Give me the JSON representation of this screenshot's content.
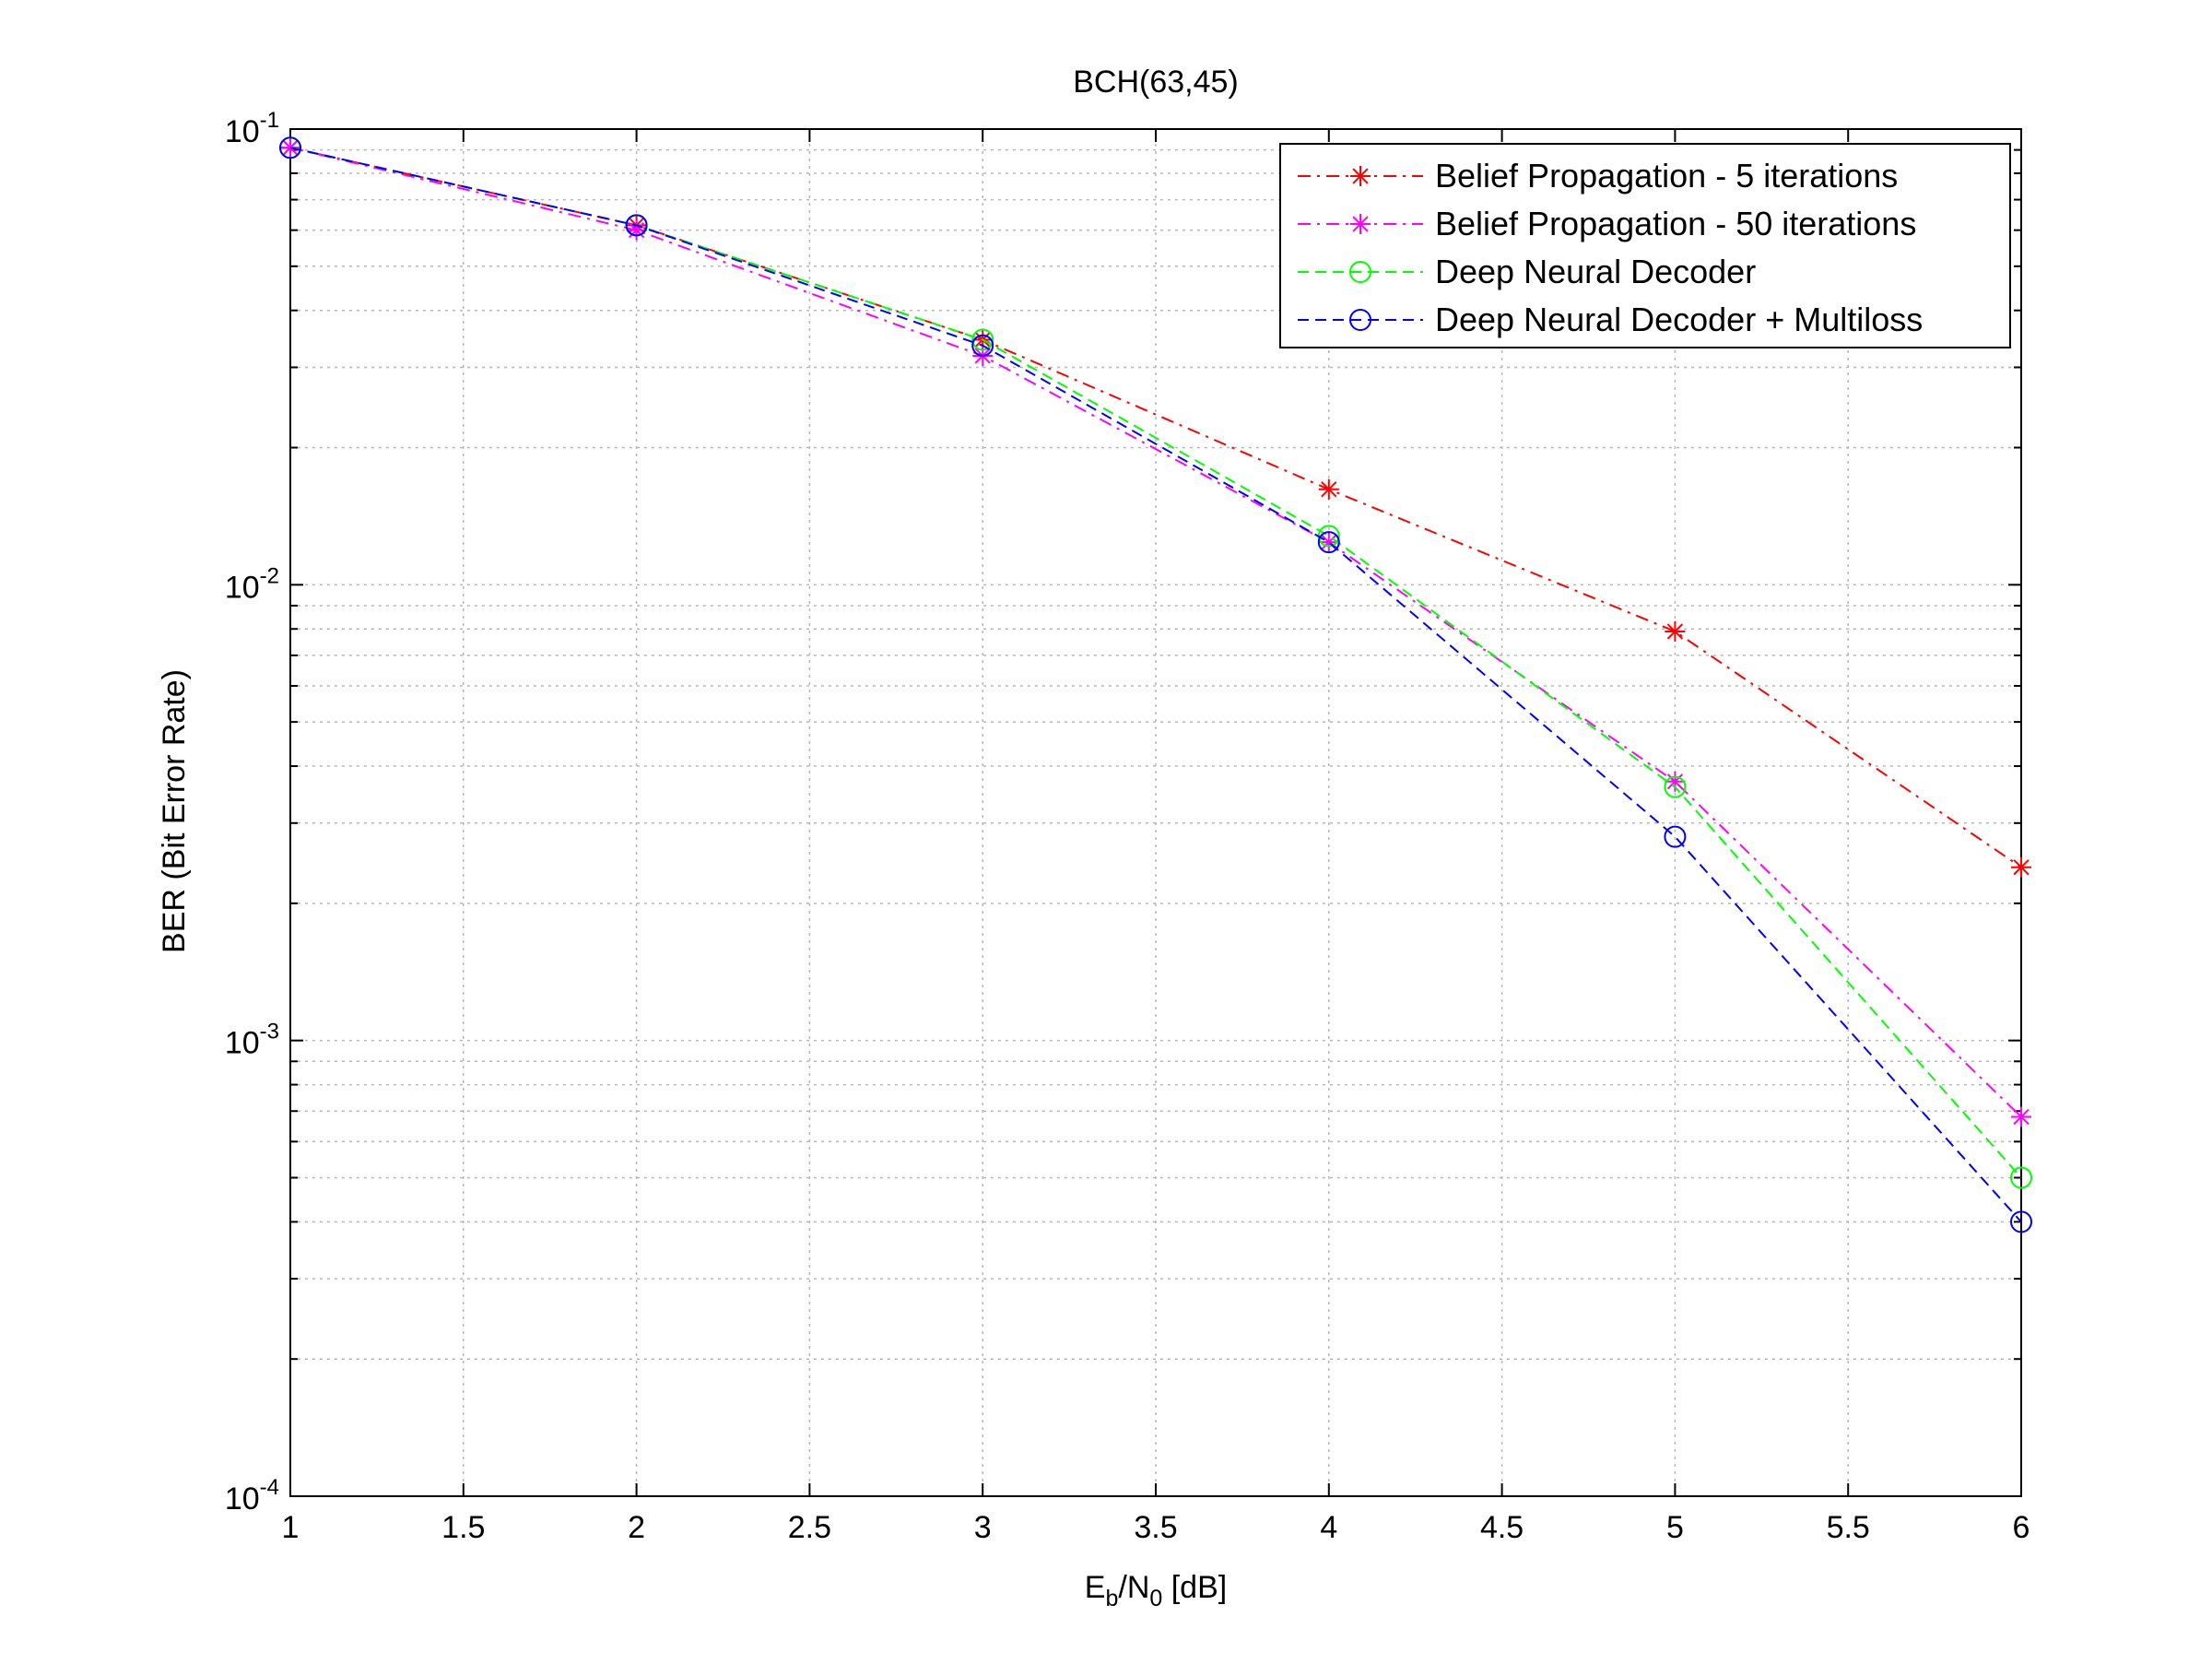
{
  "chart_data": {
    "type": "line",
    "title": "BCH(63,45)",
    "xlabel": {
      "main": "E",
      "sub1": "b",
      "mid": "/N",
      "sub2": "0",
      "tail": " [dB]"
    },
    "ylabel": "BER (Bit Error Rate)",
    "xlim": [
      1,
      6
    ],
    "ylim": [
      0.0001,
      0.1
    ],
    "yscale": "log",
    "grid": true,
    "legend_position": "top-right",
    "x_ticks": [
      {
        "value": 1,
        "label": "1"
      },
      {
        "value": 1.5,
        "label": "1.5"
      },
      {
        "value": 2,
        "label": "2"
      },
      {
        "value": 2.5,
        "label": "2.5"
      },
      {
        "value": 3,
        "label": "3"
      },
      {
        "value": 3.5,
        "label": "3.5"
      },
      {
        "value": 4,
        "label": "4"
      },
      {
        "value": 4.5,
        "label": "4.5"
      },
      {
        "value": 5,
        "label": "5"
      },
      {
        "value": 5.5,
        "label": "5.5"
      },
      {
        "value": 6,
        "label": "6"
      }
    ],
    "y_ticks": [
      {
        "value": 0.1,
        "base": "10",
        "exp": "-1"
      },
      {
        "value": 0.01,
        "base": "10",
        "exp": "-2"
      },
      {
        "value": 0.001,
        "base": "10",
        "exp": "-3"
      },
      {
        "value": 0.0001,
        "base": "10",
        "exp": "-4"
      }
    ],
    "x": [
      1,
      2,
      3,
      4,
      5,
      6
    ],
    "series": [
      {
        "name": "Belief Propagation - 5 iterations",
        "color": "#ff0000",
        "dash": "dashdot",
        "marker": "asterisk",
        "values": [
          0.091,
          0.0615,
          0.0345,
          0.0162,
          0.0079,
          0.0024
        ]
      },
      {
        "name": "Belief Propagation - 50 iterations",
        "color": "#ff00ff",
        "dash": "dashdot",
        "marker": "asterisk",
        "values": [
          0.091,
          0.06,
          0.0318,
          0.0124,
          0.0037,
          0.00068
        ]
      },
      {
        "name": "Deep Neural Decoder",
        "color": "#00ff00",
        "dash": "dash",
        "marker": "circle",
        "values": [
          0.091,
          0.0615,
          0.0345,
          0.0128,
          0.0036,
          0.0005
        ]
      },
      {
        "name": "Deep Neural Decoder + Multiloss",
        "color": "#0000ff",
        "dash": "dash",
        "marker": "circle",
        "values": [
          0.091,
          0.0615,
          0.0335,
          0.0124,
          0.0028,
          0.0004
        ]
      }
    ]
  }
}
